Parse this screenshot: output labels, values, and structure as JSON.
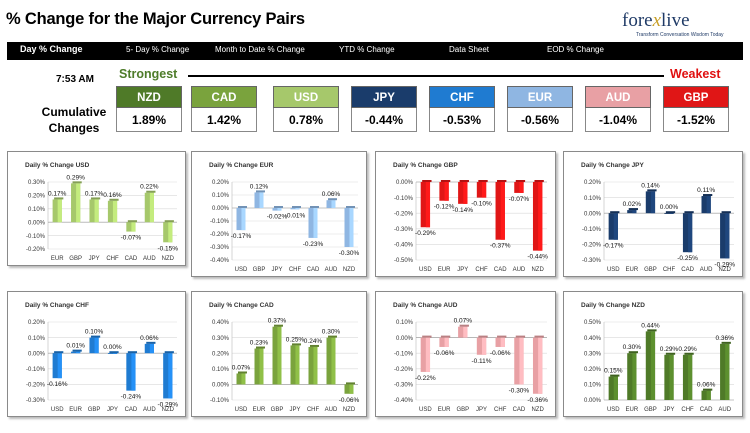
{
  "header": {
    "title": "% Change for the Major Currency Pairs",
    "logo": {
      "part1": "fore",
      "part2": "x",
      "part3": "live",
      "tagline": "Transform Conversation Wisdom Today"
    }
  },
  "nav": {
    "items": [
      "Day % Change",
      "5- Day % Change",
      "Month to Date % Change",
      "YTD % Change",
      "Data Sheet",
      "EOD % Change"
    ]
  },
  "summary": {
    "time": "7:53 AM",
    "strongest_label": "Strongest",
    "weakest_label": "Weakest",
    "cumulative_label_line1": "Cumulative",
    "cumulative_label_line2": "Changes",
    "currencies": [
      {
        "code": "NZD",
        "value": "1.89%",
        "color": "#4f7a28"
      },
      {
        "code": "CAD",
        "value": "1.42%",
        "color": "#7aa33d"
      },
      {
        "code": "USD",
        "value": "0.78%",
        "color": "#a6c86b"
      },
      {
        "code": "JPY",
        "value": "-0.44%",
        "color": "#1a3c6b"
      },
      {
        "code": "CHF",
        "value": "-0.53%",
        "color": "#1f7bd1"
      },
      {
        "code": "EUR",
        "value": "-0.56%",
        "color": "#8fb6e2"
      },
      {
        "code": "AUD",
        "value": "-1.04%",
        "color": "#e8a0a4"
      },
      {
        "code": "GBP",
        "value": "-1.52%",
        "color": "#e01616"
      }
    ]
  },
  "chart_data": [
    {
      "type": "bar",
      "title": "Daily % Change USD",
      "categories": [
        "EUR",
        "GBP",
        "JPY",
        "CHF",
        "CAD",
        "AUD",
        "NZD"
      ],
      "values": [
        0.17,
        0.29,
        0.17,
        0.16,
        -0.07,
        0.22,
        -0.15
      ],
      "labels": [
        "0.17%",
        "0.29%",
        "0.17%",
        "0.16%",
        "-0.07%",
        "0.22%",
        "-0.15%"
      ],
      "ylim": [
        -0.2,
        0.3
      ],
      "yticks": [
        "0.30%",
        "0.20%",
        "0.10%",
        "0.00%",
        "-0.10%",
        "-0.20%"
      ],
      "color": "#a6c86b"
    },
    {
      "type": "bar",
      "title": "Daily % Change EUR",
      "categories": [
        "USD",
        "GBP",
        "JPY",
        "CHF",
        "CAD",
        "AUD",
        "NZD"
      ],
      "values": [
        -0.17,
        0.12,
        -0.02,
        -0.01,
        -0.23,
        0.06,
        -0.3
      ],
      "labels": [
        "-0.17%",
        "0.12%",
        "-0.02%",
        "-0.01%",
        "-0.23%",
        "0.06%",
        "-0.30%"
      ],
      "ylim": [
        -0.4,
        0.2
      ],
      "yticks": [
        "0.20%",
        "0.10%",
        "0.00%",
        "-0.10%",
        "-0.20%",
        "-0.30%",
        "-0.40%"
      ],
      "color": "#8fb6e2"
    },
    {
      "type": "bar",
      "title": "Daily % Change GBP",
      "categories": [
        "USD",
        "EUR",
        "JPY",
        "CHF",
        "CAD",
        "AUD",
        "NZD"
      ],
      "values": [
        -0.29,
        -0.12,
        -0.14,
        -0.1,
        -0.37,
        -0.07,
        -0.44
      ],
      "labels": [
        "-0.29%",
        "-0.12%",
        "-0.14%",
        "-0.10%",
        "-0.37%",
        "-0.07%",
        "-0.44%"
      ],
      "ylim": [
        -0.5,
        0.0
      ],
      "yticks": [
        "0.00%",
        "-0.10%",
        "-0.20%",
        "-0.30%",
        "-0.40%",
        "-0.50%"
      ],
      "color": "#e01616"
    },
    {
      "type": "bar",
      "title": "Daily % Change JPY",
      "categories": [
        "USD",
        "EUR",
        "GBP",
        "CHF",
        "CAD",
        "AUD",
        "NZD"
      ],
      "values": [
        -0.17,
        0.02,
        0.14,
        0.0,
        -0.25,
        0.11,
        -0.29
      ],
      "labels": [
        "-0.17%",
        "0.02%",
        "0.14%",
        "0.00%",
        "-0.25%",
        "0.11%",
        "-0.29%"
      ],
      "ylim": [
        -0.3,
        0.2
      ],
      "yticks": [
        "0.20%",
        "0.10%",
        "0.00%",
        "-0.10%",
        "-0.20%",
        "-0.30%"
      ],
      "color": "#1a3c6b"
    },
    {
      "type": "bar",
      "title": "Daily % Change CHF",
      "categories": [
        "USD",
        "EUR",
        "GBP",
        "JPY",
        "CAD",
        "AUD",
        "NZD"
      ],
      "values": [
        -0.16,
        0.01,
        0.1,
        0.0,
        -0.24,
        0.06,
        -0.29
      ],
      "labels": [
        "-0.16%",
        "0.01%",
        "0.10%",
        "0.00%",
        "-0.24%",
        "0.06%",
        "-0.29%"
      ],
      "ylim": [
        -0.3,
        0.2
      ],
      "yticks": [
        "0.20%",
        "0.10%",
        "0.00%",
        "-0.10%",
        "-0.20%",
        "-0.30%"
      ],
      "color": "#1f7bd1"
    },
    {
      "type": "bar",
      "title": "Daily % Change CAD",
      "categories": [
        "USD",
        "EUR",
        "GBP",
        "JPY",
        "CHF",
        "AUD",
        "NZD"
      ],
      "values": [
        0.07,
        0.23,
        0.37,
        0.25,
        0.24,
        0.3,
        -0.06
      ],
      "labels": [
        "0.07%",
        "0.23%",
        "0.37%",
        "0.25%",
        "0.24%",
        "0.30%",
        "-0.06%"
      ],
      "ylim": [
        -0.1,
        0.4
      ],
      "yticks": [
        "0.40%",
        "0.30%",
        "0.20%",
        "0.10%",
        "0.00%",
        "-0.10%"
      ],
      "color": "#7aa33d"
    },
    {
      "type": "bar",
      "title": "Daily % Change AUD",
      "categories": [
        "USD",
        "EUR",
        "GBP",
        "JPY",
        "CHF",
        "CAD",
        "NZD"
      ],
      "values": [
        -0.22,
        -0.06,
        0.07,
        -0.11,
        -0.06,
        -0.3,
        -0.36
      ],
      "labels": [
        "-0.22%",
        "-0.06%",
        "0.07%",
        "-0.11%",
        "-0.06%",
        "-0.30%",
        "-0.36%"
      ],
      "ylim": [
        -0.4,
        0.1
      ],
      "yticks": [
        "0.10%",
        "0.00%",
        "-0.10%",
        "-0.20%",
        "-0.30%",
        "-0.40%"
      ],
      "color": "#e8a0a4"
    },
    {
      "type": "bar",
      "title": "Daily % Change NZD",
      "categories": [
        "USD",
        "EUR",
        "GBP",
        "JPY",
        "CHF",
        "CAD",
        "AUD"
      ],
      "values": [
        0.15,
        0.3,
        0.44,
        0.29,
        0.29,
        0.06,
        0.36
      ],
      "labels": [
        "0.15%",
        "0.30%",
        "0.44%",
        "0.29%",
        "0.29%",
        "0.06%",
        "0.36%"
      ],
      "ylim": [
        0.0,
        0.5
      ],
      "yticks": [
        "0.50%",
        "0.40%",
        "0.30%",
        "0.20%",
        "0.10%",
        "0.00%"
      ],
      "color": "#4f7a28"
    }
  ]
}
